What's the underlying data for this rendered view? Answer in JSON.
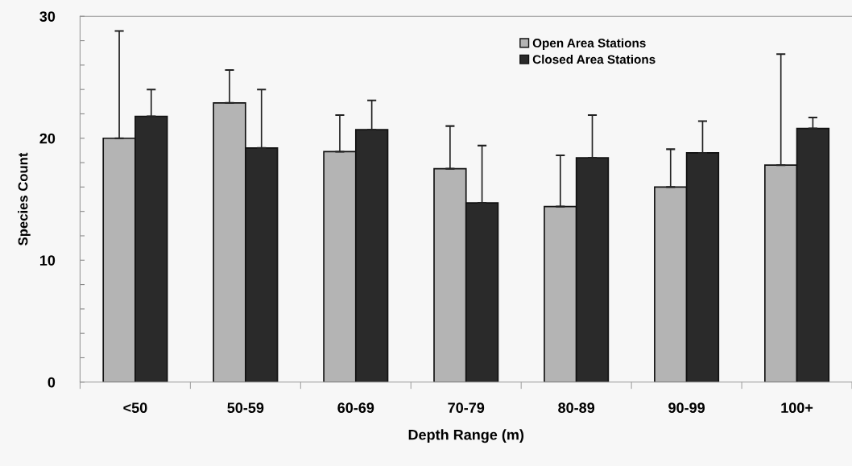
{
  "chart_data": {
    "type": "bar",
    "xlabel": "Depth Range (m)",
    "ylabel": "Species Count",
    "categories": [
      "<50",
      "50-59",
      "60-69",
      "70-79",
      "80-89",
      "90-99",
      "100+"
    ],
    "series": [
      {
        "name": "Open Area Stations",
        "color": "#b4b4b4",
        "values": [
          20.0,
          22.9,
          18.9,
          17.5,
          14.4,
          16.0,
          17.8
        ],
        "errors": [
          [
            20.0,
            28.8
          ],
          [
            22.9,
            25.6
          ],
          [
            18.9,
            21.9
          ],
          [
            17.5,
            21.0
          ],
          [
            14.4,
            18.6
          ],
          [
            16.0,
            19.1
          ],
          [
            17.8,
            26.9
          ]
        ]
      },
      {
        "name": "Closed Area Stations",
        "color": "#2a2a2a",
        "values": [
          21.8,
          19.2,
          20.7,
          14.7,
          18.4,
          18.8,
          20.8
        ],
        "errors": [
          [
            21.8,
            24.0
          ],
          [
            19.2,
            24.0
          ],
          [
            20.7,
            23.1
          ],
          [
            14.7,
            19.4
          ],
          [
            18.4,
            21.9
          ],
          [
            18.8,
            21.4
          ],
          [
            20.8,
            21.7
          ]
        ]
      }
    ],
    "ylim": [
      0,
      30
    ],
    "yticks": [
      0,
      {
        "value": 2,
        "label": null
      },
      {
        "value": 4,
        "label": null
      },
      {
        "value": 6,
        "label": null
      },
      {
        "value": 8,
        "label": null
      },
      10,
      {
        "value": 12,
        "label": null
      },
      {
        "value": 14,
        "label": null
      },
      {
        "value": 16,
        "label": null
      },
      {
        "value": 18,
        "label": null
      },
      20,
      {
        "value": 22,
        "label": null
      },
      {
        "value": 24,
        "label": null
      },
      {
        "value": 26,
        "label": null
      },
      {
        "value": 28,
        "label": null
      },
      30
    ],
    "grid": false,
    "legend": "top right"
  }
}
